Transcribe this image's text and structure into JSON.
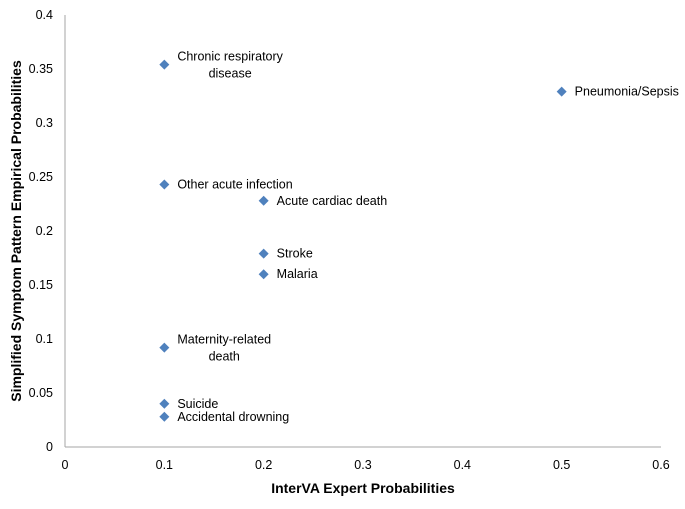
{
  "chart_data": {
    "type": "scatter",
    "title": "",
    "xlabel": "InterVA Expert Probabilities",
    "ylabel": "Simplified Symptom Pattern Empirical Probabilities",
    "xlim": [
      0,
      0.6
    ],
    "ylim": [
      0,
      0.4
    ],
    "xticks": [
      "0",
      "0.1",
      "0.2",
      "0.3",
      "0.4",
      "0.5",
      "0.6"
    ],
    "yticks": [
      "0",
      "0.05",
      "0.1",
      "0.15",
      "0.2",
      "0.25",
      "0.3",
      "0.35",
      "0.4"
    ],
    "grid": false,
    "marker": "diamond",
    "marker_color": "#4F81BD",
    "points": [
      {
        "label": [
          "Chronic respiratory",
          "disease"
        ],
        "x": 0.1,
        "y": 0.354
      },
      {
        "label": [
          "Pneumonia/Sepsis"
        ],
        "x": 0.5,
        "y": 0.329
      },
      {
        "label": [
          "Other acute infection"
        ],
        "x": 0.1,
        "y": 0.243
      },
      {
        "label": [
          "Acute cardiac death"
        ],
        "x": 0.2,
        "y": 0.228
      },
      {
        "label": [
          "Stroke"
        ],
        "x": 0.2,
        "y": 0.179
      },
      {
        "label": [
          "Malaria"
        ],
        "x": 0.2,
        "y": 0.16
      },
      {
        "label": [
          "Maternity-related",
          "death"
        ],
        "x": 0.1,
        "y": 0.092
      },
      {
        "label": [
          "Suicide"
        ],
        "x": 0.1,
        "y": 0.04
      },
      {
        "label": [
          "Accidental drowning"
        ],
        "x": 0.1,
        "y": 0.028
      }
    ]
  }
}
